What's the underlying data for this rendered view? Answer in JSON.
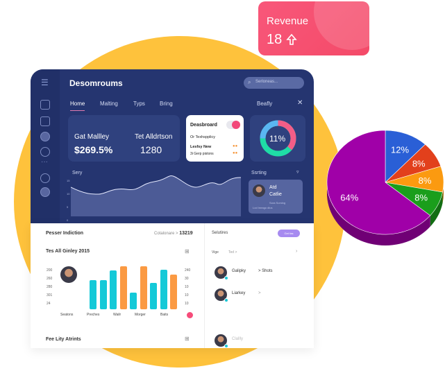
{
  "revenue": {
    "label": "Revenue",
    "value": "18",
    "icon": "arrow-up-icon"
  },
  "dashboard": {
    "title": "Desomroums",
    "search_placeholder": "Serloneas...",
    "tabs": [
      "Home",
      "Malting",
      "Typs",
      "Bring"
    ],
    "right_label": "Beafly",
    "stat1": {
      "label": "Gat Mallley",
      "value": "$269.5%"
    },
    "stat2": {
      "label": "Tet Alldrtson",
      "value": "1280"
    },
    "popup": {
      "title": "Deasbroard",
      "line1": "Or Texhspplicy",
      "line2": "Lesfsy New",
      "line3": "3i Gerp pistons"
    },
    "donut": {
      "value": "11%",
      "colors": [
        "#f35d87",
        "#5ab6f2",
        "#1fdca6"
      ]
    },
    "area": {
      "label": "Sery",
      "y_ticks": [
        "15",
        "10",
        "5",
        "0"
      ]
    },
    "sorting": {
      "label": "Ssrting",
      "name1": "Atd",
      "name2": "Catlie",
      "sub1": "Sora Suming",
      "sub2": "Lod Ineago dius"
    }
  },
  "panel": {
    "title": "Pesser Indiction",
    "crumb": "Cotalonare",
    "count": "13219",
    "chart_title": "Tes All Ginley 2015",
    "left_ticks": [
      "200",
      "260",
      "280",
      "301",
      "24"
    ],
    "right_ticks": [
      "240",
      "30",
      "10",
      "10",
      "10"
    ],
    "x_labels": [
      "Seatons",
      "Preches",
      "Wailr",
      "Morger",
      "Baits"
    ],
    "bars": [
      {
        "v": 52,
        "c": "#14c9d8"
      },
      {
        "v": 52,
        "c": "#14c9d8"
      },
      {
        "v": 70,
        "c": "#14c9d8"
      },
      {
        "v": 78,
        "c": "#fb9a43"
      },
      {
        "v": 30,
        "c": "#14c9d8"
      },
      {
        "v": 78,
        "c": "#fb9a43"
      },
      {
        "v": 47,
        "c": "#14c9d8"
      },
      {
        "v": 71,
        "c": "#14c9d8"
      },
      {
        "v": 63,
        "c": "#fb9a43"
      }
    ],
    "section2": "Fee Lity Atrints",
    "right_title": "Selutires",
    "badge": "Get fas",
    "filter1": "Vige",
    "filter2": "Ted >",
    "people": [
      {
        "name": "Galipky",
        "extra": "> Shots"
      },
      {
        "name": "Liarkey",
        "extra": ">"
      },
      {
        "name": "Clallly",
        "extra": ""
      }
    ]
  },
  "chart_data": {
    "type": "pie",
    "values": [
      12,
      8,
      8,
      8,
      64
    ],
    "labels": [
      "12%",
      "8%",
      "8%",
      "8%",
      "64%"
    ],
    "colors": [
      "#2a5fd6",
      "#e2401c",
      "#fb9a10",
      "#1a9e1c",
      "#a000a8"
    ]
  }
}
